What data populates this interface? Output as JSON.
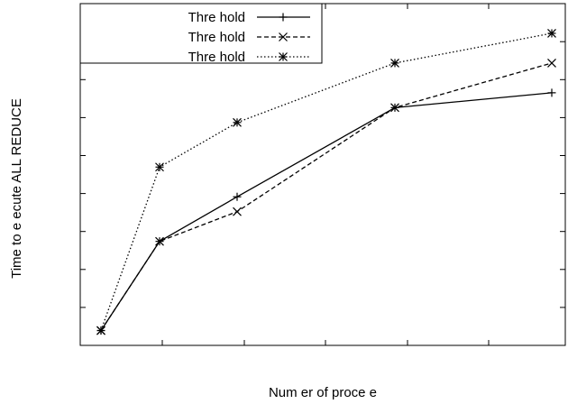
{
  "chart_data": {
    "type": "line",
    "title": "",
    "xlabel": "Num er of proce  e",
    "ylabel": "Time to e ecute ALL REDUCE",
    "legend_position": "top-left",
    "grid": false,
    "x_tick_labels": false,
    "y_tick_labels": false,
    "x": [
      1,
      2,
      3,
      4,
      5
    ],
    "series": [
      {
        "name": "Thre hold",
        "marker": "plus",
        "line_style": "solid",
        "values": [
          0.5,
          3.5,
          5.0,
          8.0,
          8.5
        ]
      },
      {
        "name": "Thre hold",
        "marker": "cross",
        "line_style": "dashed",
        "values": [
          0.5,
          3.5,
          4.5,
          8.0,
          9.5
        ]
      },
      {
        "name": "Thre hold",
        "marker": "star",
        "line_style": "dotted",
        "values": [
          0.5,
          6.0,
          7.5,
          9.5,
          10.5
        ]
      }
    ]
  }
}
